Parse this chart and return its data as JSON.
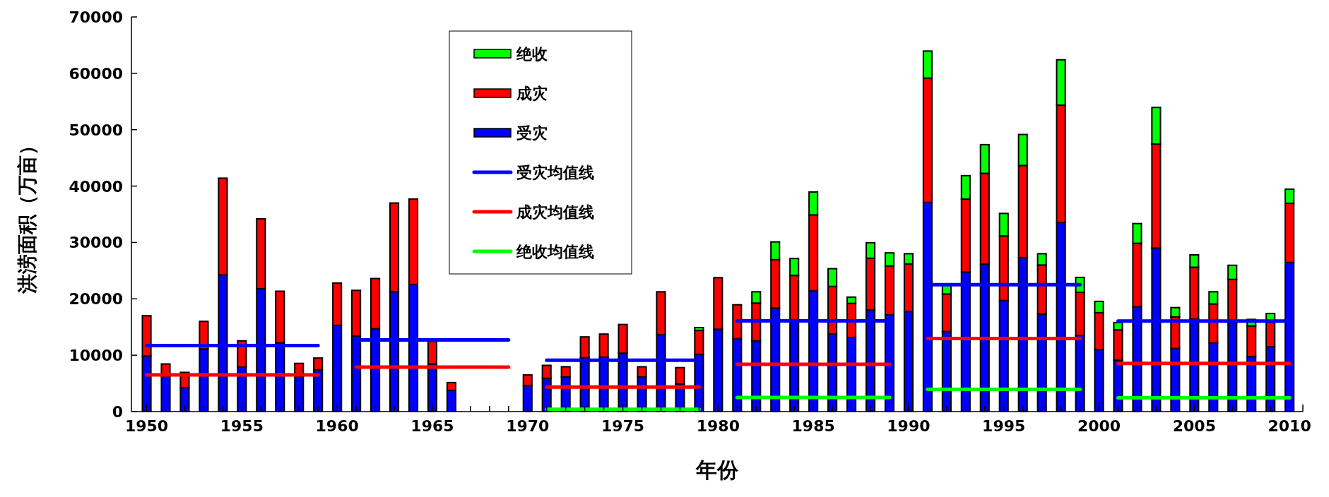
{
  "chart_data": {
    "type": "bar",
    "stacked": true,
    "xlabel": "年份",
    "ylabel": "洪涝面积（万亩）",
    "x": [
      1950,
      1951,
      1952,
      1953,
      1954,
      1955,
      1956,
      1957,
      1958,
      1959,
      1960,
      1961,
      1962,
      1963,
      1964,
      1965,
      1966,
      1967,
      1968,
      1969,
      1970,
      1971,
      1972,
      1973,
      1974,
      1975,
      1976,
      1977,
      1978,
      1979,
      1980,
      1981,
      1982,
      1983,
      1984,
      1985,
      1986,
      1987,
      1988,
      1989,
      1990,
      1991,
      1992,
      1993,
      1994,
      1995,
      1996,
      1997,
      1998,
      1999,
      2000,
      2001,
      2002,
      2003,
      2004,
      2005,
      2006,
      2007,
      2008,
      2009,
      2010
    ],
    "series": [
      {
        "name": "受灾",
        "color": "#0000ff",
        "values": [
          9850,
          6300,
          4250,
          11100,
          24250,
          7900,
          21800,
          12200,
          6300,
          7400,
          15300,
          13400,
          14700,
          21250,
          22550,
          8450,
          3750,
          null,
          null,
          null,
          4600,
          5900,
          6150,
          9500,
          9650,
          10350,
          6150,
          13650,
          4900,
          10150,
          14600,
          12950,
          12550,
          18350,
          16200,
          21400,
          13750,
          13150,
          18000,
          17150,
          17750,
          37100,
          14200,
          24750,
          26150,
          19700,
          27300,
          17300,
          33550,
          13500,
          11000,
          9100,
          18600,
          29000,
          11200,
          16400,
          12200,
          15700,
          9750,
          11500,
          26450
        ]
      },
      {
        "name": "成灾",
        "color": "#ff0000",
        "values": [
          7150,
          2150,
          2700,
          4900,
          17150,
          4650,
          12400,
          9150,
          2250,
          2100,
          7500,
          8100,
          8900,
          15750,
          15150,
          4000,
          1400,
          null,
          null,
          null,
          1900,
          2300,
          1800,
          3750,
          4100,
          5100,
          1800,
          7600,
          2900,
          4250,
          9150,
          6000,
          6700,
          8600,
          7950,
          13500,
          8450,
          6050,
          9200,
          8700,
          8450,
          22050,
          6650,
          12950,
          16100,
          11450,
          16350,
          8700,
          20800,
          7650,
          6550,
          5400,
          11250,
          18450,
          5600,
          9200,
          6900,
          7750,
          5450,
          4350,
          10500
        ]
      },
      {
        "name": "绝收",
        "color": "#00ff00",
        "values": [
          null,
          null,
          null,
          null,
          null,
          null,
          null,
          null,
          null,
          null,
          null,
          null,
          null,
          null,
          null,
          null,
          null,
          null,
          null,
          null,
          null,
          null,
          null,
          null,
          null,
          null,
          null,
          null,
          null,
          500,
          null,
          null,
          2000,
          3150,
          3000,
          4050,
          3150,
          1100,
          2750,
          2300,
          1800,
          4800,
          1600,
          4150,
          5100,
          4000,
          5500,
          2000,
          8050,
          2650,
          2000,
          1300,
          3500,
          6500,
          1650,
          2200,
          2150,
          2500,
          1150,
          1550,
          2500
        ]
      },
      {
        "name": "受灾均值线",
        "type": "line",
        "color": "#0000ff",
        "x": [
          1950,
          1959,
          1960,
          1961,
          1969,
          1970,
          1971,
          1979,
          1980,
          1981,
          1989,
          1990,
          1991,
          1999,
          2000,
          2001,
          2010
        ],
        "values": [
          11700,
          11700,
          null,
          12700,
          12700,
          null,
          9100,
          9100,
          null,
          16100,
          16100,
          null,
          22500,
          22500,
          null,
          16050,
          16050
        ]
      },
      {
        "name": "成灾均值线",
        "type": "line",
        "color": "#ff0000",
        "x": [
          1950,
          1959,
          1960,
          1961,
          1969,
          1970,
          1971,
          1979,
          1980,
          1981,
          1989,
          1990,
          1991,
          1999,
          2000,
          2001,
          2010
        ],
        "values": [
          6500,
          6500,
          null,
          7900,
          7900,
          null,
          4350,
          4350,
          null,
          8400,
          8400,
          null,
          12950,
          12950,
          null,
          8550,
          8550
        ]
      },
      {
        "name": "绝收均值线",
        "type": "line",
        "color": "#00ff00",
        "x": [
          1971,
          1979,
          1980,
          1981,
          1989,
          1990,
          1991,
          1999,
          2000,
          2001,
          2010
        ],
        "values": [
          400,
          400,
          null,
          2500,
          2500,
          null,
          3950,
          3950,
          null,
          2450,
          2450
        ]
      }
    ],
    "xlim": [
      1949.2,
      2010.7
    ],
    "xticks": [
      1950,
      {
        "value": 1951,
        "label": null
      },
      {
        "value": 1952,
        "label": null
      },
      {
        "value": 1953,
        "label": null
      },
      {
        "value": 1954,
        "label": null
      },
      1955,
      {
        "value": 1956,
        "label": null
      },
      {
        "value": 1957,
        "label": null
      },
      {
        "value": 1958,
        "label": null
      },
      {
        "value": 1959,
        "label": null
      },
      1960,
      {
        "value": 1961,
        "label": null
      },
      {
        "value": 1962,
        "label": null
      },
      {
        "value": 1963,
        "label": null
      },
      {
        "value": 1964,
        "label": null
      },
      1965,
      {
        "value": 1966,
        "label": null
      },
      {
        "value": 1967,
        "label": null
      },
      {
        "value": 1968,
        "label": null
      },
      {
        "value": 1969,
        "label": null
      },
      1970,
      {
        "value": 1971,
        "label": null
      },
      {
        "value": 1972,
        "label": null
      },
      {
        "value": 1973,
        "label": null
      },
      {
        "value": 1974,
        "label": null
      },
      1975,
      {
        "value": 1976,
        "label": null
      },
      {
        "value": 1977,
        "label": null
      },
      {
        "value": 1978,
        "label": null
      },
      {
        "value": 1979,
        "label": null
      },
      1980,
      {
        "value": 1981,
        "label": null
      },
      {
        "value": 1982,
        "label": null
      },
      {
        "value": 1983,
        "label": null
      },
      {
        "value": 1984,
        "label": null
      },
      1985,
      {
        "value": 1986,
        "label": null
      },
      {
        "value": 1987,
        "label": null
      },
      {
        "value": 1988,
        "label": null
      },
      {
        "value": 1989,
        "label": null
      },
      1990,
      {
        "value": 1991,
        "label": null
      },
      {
        "value": 1992,
        "label": null
      },
      {
        "value": 1993,
        "label": null
      },
      {
        "value": 1994,
        "label": null
      },
      1995,
      {
        "value": 1996,
        "label": null
      },
      {
        "value": 1997,
        "label": null
      },
      {
        "value": 1998,
        "label": null
      },
      {
        "value": 1999,
        "label": null
      },
      2000,
      {
        "value": 2001,
        "label": null
      },
      {
        "value": 2002,
        "label": null
      },
      {
        "value": 2003,
        "label": null
      },
      {
        "value": 2004,
        "label": null
      },
      2005,
      {
        "value": 2006,
        "label": null
      },
      {
        "value": 2007,
        "label": null
      },
      {
        "value": 2008,
        "label": null
      },
      {
        "value": 2009,
        "label": null
      },
      2010
    ],
    "ylim": [
      0,
      70000
    ],
    "yticks": [
      0,
      10000,
      20000,
      30000,
      40000,
      50000,
      60000,
      70000
    ],
    "legend": "top",
    "grid": false
  }
}
